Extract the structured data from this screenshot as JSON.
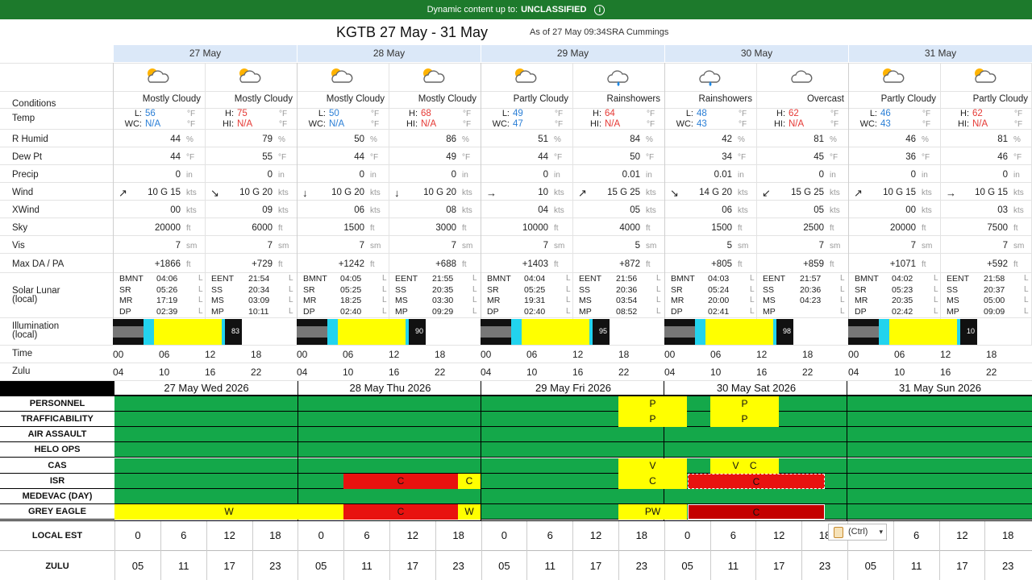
{
  "banner": {
    "prefix": "Dynamic content up to:",
    "level": "UNCLASSIFIED",
    "info_icon": "i"
  },
  "header": {
    "title": "KGTB 27 May - 31 May",
    "asof": "As of 27 May 09:34SRA Cummings"
  },
  "days": [
    "27 May",
    "28 May",
    "29 May",
    "30 May",
    "31 May"
  ],
  "row_labels": {
    "conditions": "Conditions",
    "temp": "Temp",
    "rhumid": "R Humid",
    "dewpt": "Dew Pt",
    "precip": "Precip",
    "wind": "Wind",
    "xwind": "XWind",
    "sky": "Sky",
    "vis": "Vis",
    "maxda": "Max DA / PA",
    "solar": "Solar Lunar",
    "solar2": "(local)",
    "illum": "Illumination",
    "illum2": "(local)",
    "time": "Time",
    "zulu": "Zulu"
  },
  "units": {
    "f": "°F",
    "pct": "%",
    "in": "in",
    "kts": "kts",
    "ft": "ft",
    "sm": "sm",
    "l": "L"
  },
  "temp_labels": {
    "l": "L:",
    "h": "H:",
    "wc": "WC:",
    "hi": "HI:"
  },
  "solar_labels": {
    "bmnt": "BMNT",
    "sr": "SR",
    "mr": "MR",
    "dp": "DP",
    "eent": "EENT",
    "ss": "SS",
    "ms": "MS",
    "mp": "MP"
  },
  "periods": [
    {
      "cond": "Mostly Cloudy",
      "tl": "L:",
      "t": "56",
      "tc": "blue",
      "i2l": "WC:",
      "i2": "N/A",
      "rh": "44",
      "dp": "44",
      "pr": "0",
      "wd": "↗",
      "ws": "10 G 15",
      "xw": "00",
      "sky": "20000",
      "vis": "7",
      "da": "+1866",
      "icon": "partly-cloudy-sun-icon"
    },
    {
      "cond": "Mostly Cloudy",
      "tl": "H:",
      "t": "75",
      "tc": "red",
      "i2l": "HI:",
      "i2": "N/A",
      "rh": "79",
      "dp": "55",
      "pr": "0",
      "wd": "↘",
      "ws": "10 G 20",
      "xw": "09",
      "sky": "6000",
      "vis": "7",
      "da": "+729",
      "icon": "partly-cloudy-sun-icon"
    },
    {
      "cond": "Mostly Cloudy",
      "tl": "L:",
      "t": "50",
      "tc": "blue",
      "i2l": "WC:",
      "i2": "N/A",
      "rh": "50",
      "dp": "44",
      "pr": "0",
      "wd": "↓",
      "ws": "10 G 20",
      "xw": "06",
      "sky": "1500",
      "vis": "7",
      "da": "+1242",
      "icon": "partly-cloudy-sun-icon"
    },
    {
      "cond": "Mostly Cloudy",
      "tl": "H:",
      "t": "68",
      "tc": "red",
      "i2l": "HI:",
      "i2": "N/A",
      "rh": "86",
      "dp": "49",
      "pr": "0",
      "wd": "↓",
      "ws": "10 G 20",
      "xw": "08",
      "sky": "3000",
      "vis": "7",
      "da": "+688",
      "icon": "partly-cloudy-sun-icon"
    },
    {
      "cond": "Partly Cloudy",
      "tl": "L:",
      "t": "49",
      "tc": "blue",
      "i2l": "WC:",
      "i2": "47",
      "rh": "51",
      "dp": "44",
      "pr": "0",
      "wd": "→",
      "ws": "10",
      "xw": "04",
      "sky": "10000",
      "vis": "7",
      "da": "+1403",
      "icon": "partly-cloudy-sun-icon"
    },
    {
      "cond": "Rainshowers",
      "tl": "H:",
      "t": "64",
      "tc": "red",
      "i2l": "HI:",
      "i2": "N/A",
      "rh": "84",
      "dp": "50",
      "pr": "0.01",
      "wd": "↗",
      "ws": "15 G 25",
      "xw": "05",
      "sky": "4000",
      "vis": "5",
      "da": "+872",
      "icon": "rain-cloud-icon"
    },
    {
      "cond": "Rainshowers",
      "tl": "L:",
      "t": "48",
      "tc": "blue",
      "i2l": "WC:",
      "i2": "43",
      "rh": "42",
      "dp": "34",
      "pr": "0.01",
      "wd": "↘",
      "ws": "14 G 20",
      "xw": "06",
      "sky": "1500",
      "vis": "5",
      "da": "+805",
      "icon": "rain-cloud-icon"
    },
    {
      "cond": "Overcast",
      "tl": "H:",
      "t": "62",
      "tc": "red",
      "i2l": "HI:",
      "i2": "N/A",
      "rh": "81",
      "dp": "45",
      "pr": "0",
      "wd": "↙",
      "ws": "15 G 25",
      "xw": "05",
      "sky": "2500",
      "vis": "7",
      "da": "+859",
      "icon": "cloud-icon"
    },
    {
      "cond": "Partly Cloudy",
      "tl": "L:",
      "t": "46",
      "tc": "blue",
      "i2l": "WC:",
      "i2": "43",
      "rh": "46",
      "dp": "36",
      "pr": "0",
      "wd": "↗",
      "ws": "10 G 15",
      "xw": "00",
      "sky": "20000",
      "vis": "7",
      "da": "+1071",
      "icon": "partly-cloudy-sun-icon"
    },
    {
      "cond": "Partly Cloudy",
      "tl": "H:",
      "t": "62",
      "tc": "red",
      "i2l": "HI:",
      "i2": "N/A",
      "rh": "81",
      "dp": "46",
      "pr": "0",
      "wd": "→",
      "ws": "10 G 15",
      "xw": "03",
      "sky": "7500",
      "vis": "7",
      "da": "+592",
      "icon": "partly-cloudy-sun-icon"
    }
  ],
  "solar": [
    {
      "bmnt": "04:06",
      "sr": "05:26",
      "mr": "17:19",
      "dp": "02:39",
      "eent": "21:54",
      "ss": "20:34",
      "ms": "03:09",
      "mp": "10:11"
    },
    {
      "bmnt": "04:05",
      "sr": "05:25",
      "mr": "18:25",
      "dp": "02:40",
      "eent": "21:55",
      "ss": "20:35",
      "ms": "03:30",
      "mp": "09:29"
    },
    {
      "bmnt": "04:04",
      "sr": "05:25",
      "mr": "19:31",
      "dp": "02:40",
      "eent": "21:56",
      "ss": "20:36",
      "ms": "03:54",
      "mp": "08:52"
    },
    {
      "bmnt": "04:03",
      "sr": "05:24",
      "mr": "20:00",
      "dp": "02:41",
      "eent": "21:57",
      "ss": "20:36",
      "ms": "04:23",
      "mp": ""
    },
    {
      "bmnt": "04:02",
      "sr": "05:23",
      "mr": "20:35",
      "dp": "02:42",
      "eent": "21:58",
      "ss": "20:37",
      "ms": "05:00",
      "mp": "09:09"
    }
  ],
  "illum_pct": [
    "83",
    "90",
    "95",
    "98",
    "10"
  ],
  "time_ticks": [
    "00",
    "06",
    "12",
    "18"
  ],
  "zulu_ticks": [
    "04",
    "10",
    "16",
    "22"
  ],
  "chart_days": [
    "27 May Wed 2026",
    "28 May Thu 2026",
    "29 May Fri 2026",
    "30 May Sat 2026",
    "31 May Sun 2026"
  ],
  "categories": [
    "PERSONNEL",
    "TRAFFICABILITY",
    "AIR ASSAULT",
    "HELO OPS",
    "CAS",
    "ISR",
    "MEDEVAC (DAY)",
    "GREY EAGLE"
  ],
  "bar_labels": {
    "p": "P",
    "v": "V",
    "c": "C",
    "w": "W",
    "vc": "V    C",
    "pw": "PW"
  },
  "legend_colors": {
    "green": "#14a84a",
    "yellow": "#ffff00",
    "red": "#e8120f",
    "dark_red": "#c40000"
  },
  "axis": {
    "local_label": "LOCAL EST",
    "zulu_label": "ZULU",
    "local": [
      "0",
      "6",
      "12",
      "18",
      "0",
      "6",
      "12",
      "18",
      "0",
      "6",
      "12",
      "18",
      "0",
      "6",
      "12",
      "18",
      "",
      "6",
      "12",
      "18"
    ],
    "zulu": [
      "05",
      "11",
      "17",
      "23",
      "05",
      "11",
      "17",
      "23",
      "05",
      "11",
      "17",
      "23",
      "05",
      "11",
      "17",
      "23",
      "05",
      "11",
      "17",
      "23"
    ]
  },
  "paste_popup": {
    "label": "(Ctrl)",
    "icon": "clipboard-icon"
  }
}
